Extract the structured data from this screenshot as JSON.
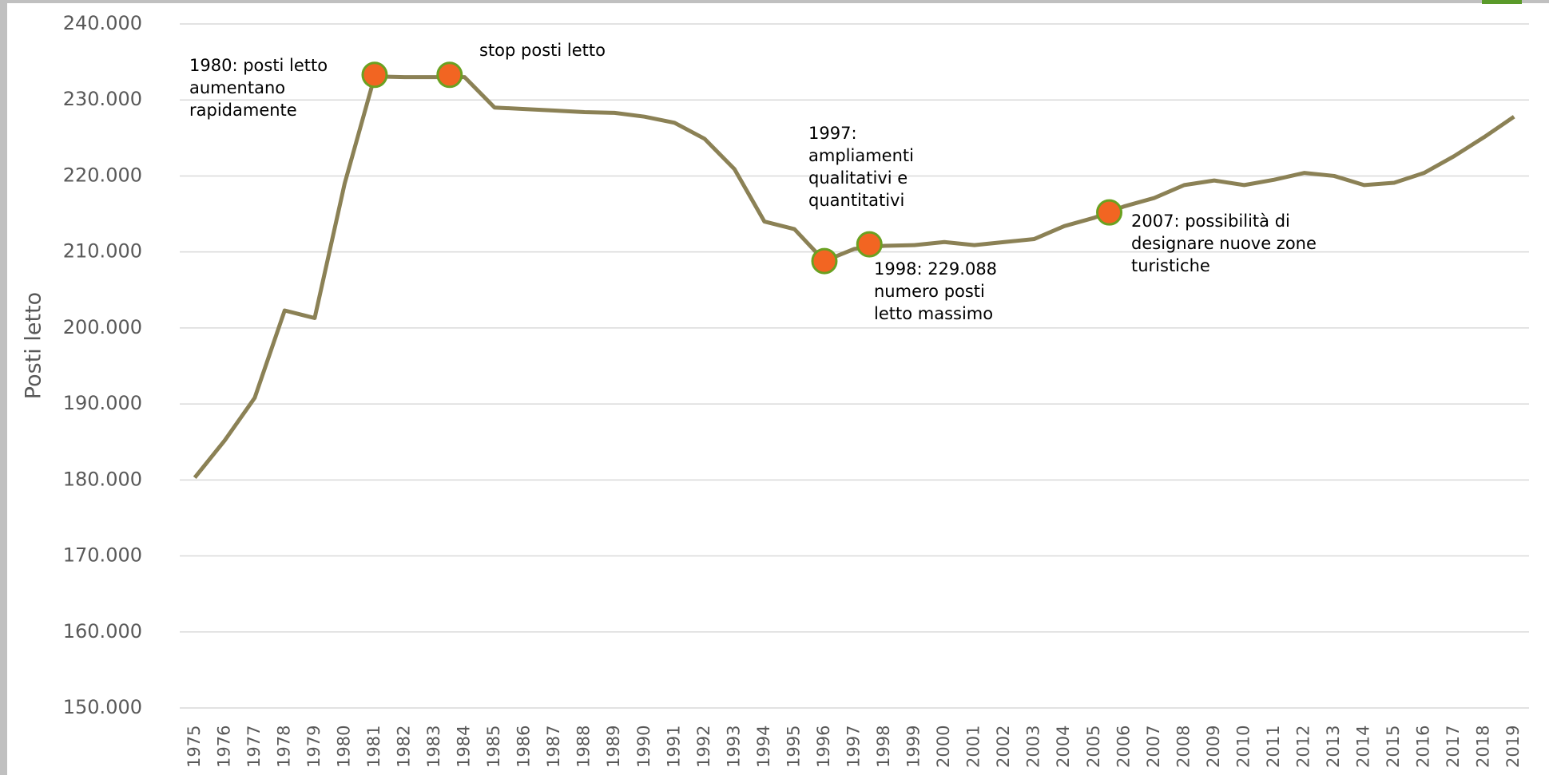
{
  "chart_data": {
    "type": "line",
    "y_label": "Posti letto",
    "x": [
      1975,
      1976,
      1977,
      1978,
      1979,
      1980,
      1981,
      1982,
      1983,
      1984,
      1985,
      1986,
      1987,
      1988,
      1989,
      1990,
      1991,
      1992,
      1993,
      1994,
      1995,
      1996,
      1997,
      1998,
      1999,
      2000,
      2001,
      2002,
      2003,
      2004,
      2005,
      2006,
      2007,
      2008,
      2009,
      2010,
      2011,
      2012,
      2013,
      2014,
      2015,
      2016,
      2017,
      2018,
      2019
    ],
    "series": [
      {
        "color": "#8b8155",
        "values": [
          180300,
          185200,
          190800,
          202300,
          201300,
          219000,
          233100,
          233000,
          233000,
          233000,
          229000,
          228800,
          228600,
          228400,
          228300,
          227800,
          227000,
          224900,
          220900,
          214000,
          213000,
          208800,
          210400,
          210800,
          210900,
          211300,
          210900,
          211300,
          211700,
          213400,
          214500,
          216000,
          217100,
          218800,
          219400,
          218800,
          219500,
          220400,
          220000,
          218800,
          219100,
          220400,
          222600,
          225100,
          227800
        ]
      }
    ],
    "markers": {
      "color": "#f26522",
      "x": [
        1981,
        1983.5,
        1996,
        1997.5,
        2005.5
      ],
      "values": [
        233300,
        233300,
        208800,
        211000,
        215200
      ]
    },
    "annotations": [
      {
        "lines": [
          "1980: posti letto",
          "aumentano",
          "rapidamente"
        ]
      },
      {
        "lines": [
          "stop posti letto"
        ]
      },
      {
        "lines": [
          "1997:",
          "ampliamenti",
          "qualitativi e",
          "quantitativi"
        ]
      },
      {
        "lines": [
          "1998: 229.088",
          "numero posti",
          "letto massimo"
        ]
      },
      {
        "lines": [
          "2007: possibilità di",
          "designare nuove zone",
          "turistiche"
        ]
      }
    ],
    "xlim": [
      1974.5,
      2019.5
    ],
    "ylim": [
      150000,
      240000
    ],
    "yticks": [
      {
        "value": 150000,
        "label": "150.000"
      },
      {
        "value": 160000,
        "label": "160.000"
      },
      {
        "value": 170000,
        "label": "170.000"
      },
      {
        "value": 180000,
        "label": "180.000"
      },
      {
        "value": 190000,
        "label": "190.000"
      },
      {
        "value": 200000,
        "label": "200.000"
      },
      {
        "value": 210000,
        "label": "210.000"
      },
      {
        "value": 220000,
        "label": "220.000"
      },
      {
        "value": 230000,
        "label": "230.000"
      },
      {
        "value": 240000,
        "label": "240.000"
      }
    ],
    "grid": true
  }
}
